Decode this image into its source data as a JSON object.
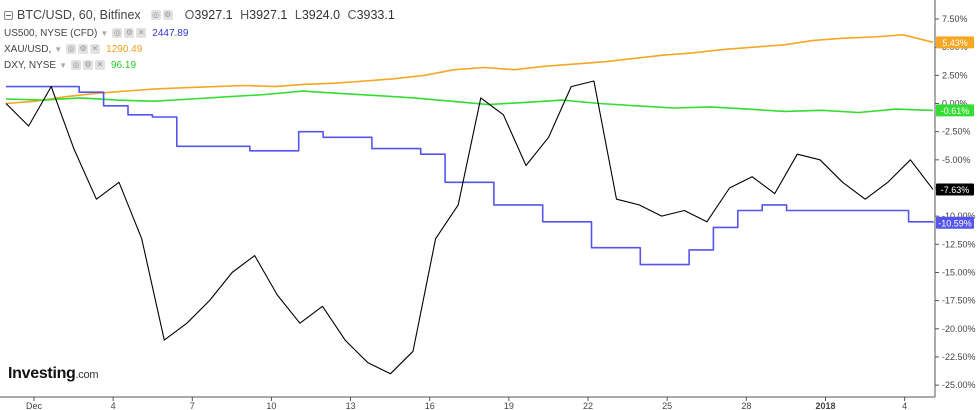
{
  "legend": {
    "main": {
      "symbol": "BTC/USD, 60, Bitfinex",
      "ohlc": [
        {
          "k": "O",
          "v": "3927.1"
        },
        {
          "k": "H",
          "v": "3927.1"
        },
        {
          "k": "L",
          "v": "3924.0"
        },
        {
          "k": "C",
          "v": "3933.1"
        }
      ]
    },
    "overlays": [
      {
        "symbol": "US500, NYSE (CFD)",
        "value": "2447.89",
        "color": "#3333cc"
      },
      {
        "symbol": "XAU/USD,",
        "value": "1290.49",
        "color": "#f0a020"
      },
      {
        "symbol": "DXY, NYSE",
        "value": "96.19",
        "color": "#22cc22"
      }
    ]
  },
  "logo": {
    "name": "Investing",
    "suffix": ".com"
  },
  "chart_data": {
    "type": "line",
    "y_scale": "percent",
    "ylim": [
      -25.7,
      8.3
    ],
    "y_ticks": [
      "7.50%",
      "5.00%",
      "2.50%",
      "0.00%",
      "-2.50%",
      "-5.00%",
      "-7.50%",
      "-10.00%",
      "-12.50%",
      "-15.00%",
      "-17.50%",
      "-20.00%",
      "-22.50%",
      "-25.00%"
    ],
    "x_tick_labels": [
      "Dec",
      "4",
      "7",
      "10",
      "13",
      "16",
      "19",
      "22",
      "25",
      "28",
      "2018",
      "4"
    ],
    "x_tick_index": [
      0,
      3,
      6,
      9,
      12,
      15,
      18,
      21,
      24,
      27,
      30,
      33
    ],
    "grid": false,
    "series": [
      {
        "name": "BTC/USD",
        "color": "#000000",
        "last_label": "-7.63%",
        "values": [
          0.0,
          -2.0,
          1.5,
          -4.0,
          -8.5,
          -7.0,
          -12.0,
          -21.0,
          -19.5,
          -17.5,
          -15.0,
          -13.5,
          -17.0,
          -19.5,
          -18.0,
          -21.0,
          -23.0,
          -24.0,
          -22.0,
          -12.0,
          -9.0,
          0.5,
          -1.0,
          -5.5,
          -3.0,
          1.5,
          2.0,
          -8.5,
          -9.0,
          -10.0,
          -9.5,
          -10.5,
          -7.5,
          -6.5,
          -8.0,
          -4.5,
          -5.0,
          -7.0,
          -8.5,
          -7.0,
          -5.0,
          -7.63
        ]
      },
      {
        "name": "US500",
        "color": "#5555ee",
        "last_label": "-10.59%",
        "values": [
          1.5,
          1.5,
          1.5,
          1.0,
          -0.2,
          -1.0,
          -1.2,
          -3.8,
          -3.8,
          -3.8,
          -4.2,
          -4.2,
          -2.5,
          -3.0,
          -3.0,
          -4.0,
          -4.0,
          -4.5,
          -7.0,
          -7.0,
          -9.0,
          -9.0,
          -10.5,
          -10.5,
          -12.8,
          -12.8,
          -14.3,
          -14.3,
          -13.0,
          -11.0,
          -9.5,
          -9.0,
          -9.5,
          -9.5,
          -9.5,
          -9.5,
          -9.5,
          -10.5,
          -10.59
        ]
      },
      {
        "name": "XAU/USD",
        "color": "#f5a623",
        "last_label": "5.43%",
        "values": [
          0.0,
          0.2,
          0.6,
          0.9,
          1.1,
          1.3,
          1.4,
          1.5,
          1.6,
          1.5,
          1.7,
          1.8,
          2.0,
          2.2,
          2.5,
          3.0,
          3.2,
          3.0,
          3.3,
          3.5,
          3.7,
          4.0,
          4.3,
          4.5,
          4.8,
          5.0,
          5.2,
          5.6,
          5.8,
          5.9,
          6.1,
          5.43
        ]
      },
      {
        "name": "DXY",
        "color": "#33dd33",
        "last_label": "-0.61%",
        "values": [
          0.4,
          0.3,
          0.5,
          0.3,
          0.2,
          0.4,
          0.6,
          0.8,
          1.1,
          0.9,
          0.7,
          0.5,
          0.2,
          -0.1,
          0.1,
          0.3,
          0.0,
          -0.2,
          -0.4,
          -0.3,
          -0.5,
          -0.7,
          -0.6,
          -0.8,
          -0.5,
          -0.61
        ]
      }
    ]
  }
}
